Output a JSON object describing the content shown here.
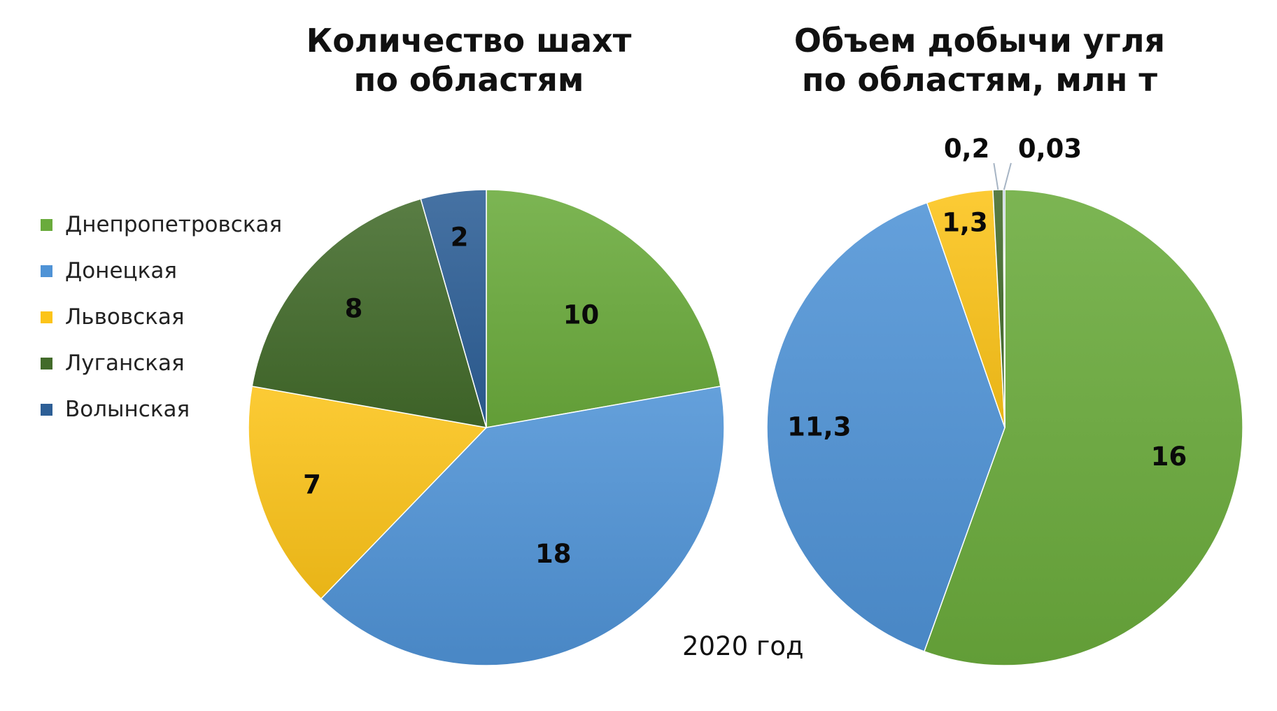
{
  "chart_data": [
    {
      "type": "pie",
      "title_lines": [
        "Количество шахт",
        "по областям"
      ],
      "categories": [
        "Днепропетровская",
        "Донецкая",
        "Львовская",
        "Луганская",
        "Волынская"
      ],
      "values": [
        10,
        18,
        7,
        8,
        2
      ],
      "value_labels": [
        "10",
        "18",
        "7",
        "8",
        "2"
      ],
      "colors": [
        "#6aab3c",
        "#4f93d6",
        "#fcc419",
        "#426b2a",
        "#2d5f96"
      ]
    },
    {
      "type": "pie",
      "title_lines": [
        "Объем добычи угля",
        "по областям, млн т"
      ],
      "categories": [
        "Днепропетровская",
        "Донецкая",
        "Львовская",
        "Луганская",
        "Волынская"
      ],
      "values": [
        16,
        11.3,
        1.3,
        0.2,
        0.03
      ],
      "value_labels": [
        "16",
        "11,3",
        "1,3",
        "0,2",
        "0,03"
      ],
      "colors": [
        "#6aab3c",
        "#4f93d6",
        "#fcc419",
        "#426b2a",
        "#2d5f96"
      ]
    }
  ],
  "legend": {
    "placement": "left",
    "items": [
      {
        "label": "Днепропетровская",
        "color": "#6aab3c"
      },
      {
        "label": "Донецкая",
        "color": "#4f93d6"
      },
      {
        "label": "Львовская",
        "color": "#fcc419"
      },
      {
        "label": "Луганская",
        "color": "#426b2a"
      },
      {
        "label": "Волынская",
        "color": "#2d5f96"
      }
    ]
  },
  "footnote": "2020 год"
}
